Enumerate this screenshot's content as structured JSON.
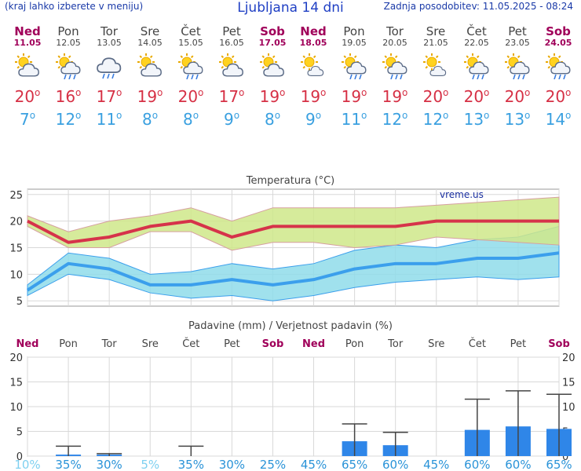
{
  "header": {
    "left_note": "(kraj lahko izberete v meniju)",
    "title": "Ljubljana 14 dni",
    "updated": "Zadnja posodobitev: 11.05.2025 - 08:24"
  },
  "days": [
    {
      "name": "Ned",
      "date": "11.05",
      "weekend": true,
      "icon": "partly-cloudy-icon",
      "max": "20",
      "min": "7"
    },
    {
      "name": "Pon",
      "date": "12.05",
      "weekend": false,
      "icon": "sun-cloud-rain-icon",
      "max": "16",
      "min": "12"
    },
    {
      "name": "Tor",
      "date": "13.05",
      "weekend": false,
      "icon": "cloud-rain-icon",
      "max": "17",
      "min": "11"
    },
    {
      "name": "Sre",
      "date": "14.05",
      "weekend": false,
      "icon": "partly-cloudy-icon",
      "max": "19",
      "min": "8"
    },
    {
      "name": "Čet",
      "date": "15.05",
      "weekend": false,
      "icon": "sun-cloud-rain-icon",
      "max": "20",
      "min": "8"
    },
    {
      "name": "Pet",
      "date": "16.05",
      "weekend": false,
      "icon": "partly-cloudy-icon",
      "max": "17",
      "min": "9"
    },
    {
      "name": "Sob",
      "date": "17.05",
      "weekend": true,
      "icon": "partly-cloudy-icon",
      "max": "19",
      "min": "8"
    },
    {
      "name": "Ned",
      "date": "18.05",
      "weekend": true,
      "icon": "sun-small-cloud-icon",
      "max": "19",
      "min": "9"
    },
    {
      "name": "Pon",
      "date": "19.05",
      "weekend": false,
      "icon": "sun-cloud-rain-icon",
      "max": "19",
      "min": "11"
    },
    {
      "name": "Tor",
      "date": "20.05",
      "weekend": false,
      "icon": "sun-cloud-rain-icon",
      "max": "19",
      "min": "12"
    },
    {
      "name": "Sre",
      "date": "21.05",
      "weekend": false,
      "icon": "sun-small-cloud-icon",
      "max": "20",
      "min": "12"
    },
    {
      "name": "Čet",
      "date": "22.05",
      "weekend": false,
      "icon": "sun-cloud-rain-icon",
      "max": "20",
      "min": "13"
    },
    {
      "name": "Pet",
      "date": "23.05",
      "weekend": false,
      "icon": "sun-cloud-rain-icon",
      "max": "20",
      "min": "13"
    },
    {
      "name": "Sob",
      "date": "24.05",
      "weekend": true,
      "icon": "sun-cloud-rain-icon",
      "max": "20",
      "min": "14"
    }
  ],
  "colors": {
    "max_text": "#d63045",
    "min_text": "#3aa0e0",
    "weekend": "#a0005a",
    "max_line": "#d6334a",
    "max_band": "#cfe88a",
    "min_line": "#3b9fec",
    "min_band": "#8fdcea",
    "bar": "#2f86e8",
    "prob_low": "#7fd0f0",
    "prob_high": "#2a93d8"
  },
  "chart_data": [
    {
      "type": "line",
      "title": "Temperatura (°C)",
      "watermark": "vreme.us",
      "categories": [
        "11.05",
        "12.05",
        "13.05",
        "14.05",
        "15.05",
        "16.05",
        "17.05",
        "18.05",
        "19.05",
        "20.05",
        "21.05",
        "22.05",
        "23.05",
        "24.05"
      ],
      "ylim": [
        4,
        26
      ],
      "yticks": [
        5,
        10,
        15,
        20,
        25
      ],
      "grid": true,
      "series": [
        {
          "values": [
            20,
            16,
            17,
            19,
            20,
            17,
            19,
            19,
            19,
            19,
            20,
            20,
            20,
            20
          ]
        },
        {
          "values": [
            21,
            18,
            20,
            21,
            22.5,
            20,
            22.5,
            22.5,
            22.5,
            22.5,
            23,
            23.5,
            24,
            24.5
          ],
          "role": "max-upper"
        },
        {
          "values": [
            19,
            15,
            15,
            18,
            18,
            14.5,
            16,
            16,
            15,
            15.5,
            17,
            16.5,
            16,
            15.5
          ],
          "role": "max-lower"
        },
        {
          "values": [
            7,
            12,
            11,
            8,
            8,
            9,
            8,
            9,
            11,
            12,
            12,
            13,
            13,
            14
          ]
        },
        {
          "values": [
            8,
            14,
            13,
            10,
            10.5,
            12,
            11,
            12,
            14.5,
            15.5,
            15,
            16.5,
            17,
            19
          ],
          "role": "min-upper"
        },
        {
          "values": [
            6,
            10,
            9,
            6.5,
            5.5,
            6,
            5,
            6,
            7.5,
            8.5,
            9,
            9.5,
            9,
            9.5
          ],
          "role": "min-lower"
        }
      ]
    },
    {
      "type": "bar",
      "title": "Padavine (mm) / Verjetnost padavin (%)",
      "categories": [
        "Ned",
        "Pon",
        "Tor",
        "Sre",
        "Čet",
        "Pet",
        "Sob",
        "Ned",
        "Pon",
        "Tor",
        "Sre",
        "Čet",
        "Pet",
        "Sob"
      ],
      "ylim": [
        0,
        20
      ],
      "yticks": [
        0,
        5,
        10,
        15,
        20
      ],
      "grid": true,
      "values": [
        0,
        0.3,
        0.3,
        0,
        0,
        0,
        0,
        0,
        3,
        2.2,
        0,
        5.3,
        6,
        5.5
      ],
      "error_high": [
        0,
        2,
        0.5,
        0,
        2,
        0,
        0,
        0,
        6.5,
        4.8,
        0,
        11.5,
        13.2,
        12.5
      ],
      "probability": [
        "10%",
        "35%",
        "30%",
        "5%",
        "35%",
        "30%",
        "25%",
        "45%",
        "65%",
        "60%",
        "45%",
        "60%",
        "60%",
        "65%"
      ]
    }
  ]
}
